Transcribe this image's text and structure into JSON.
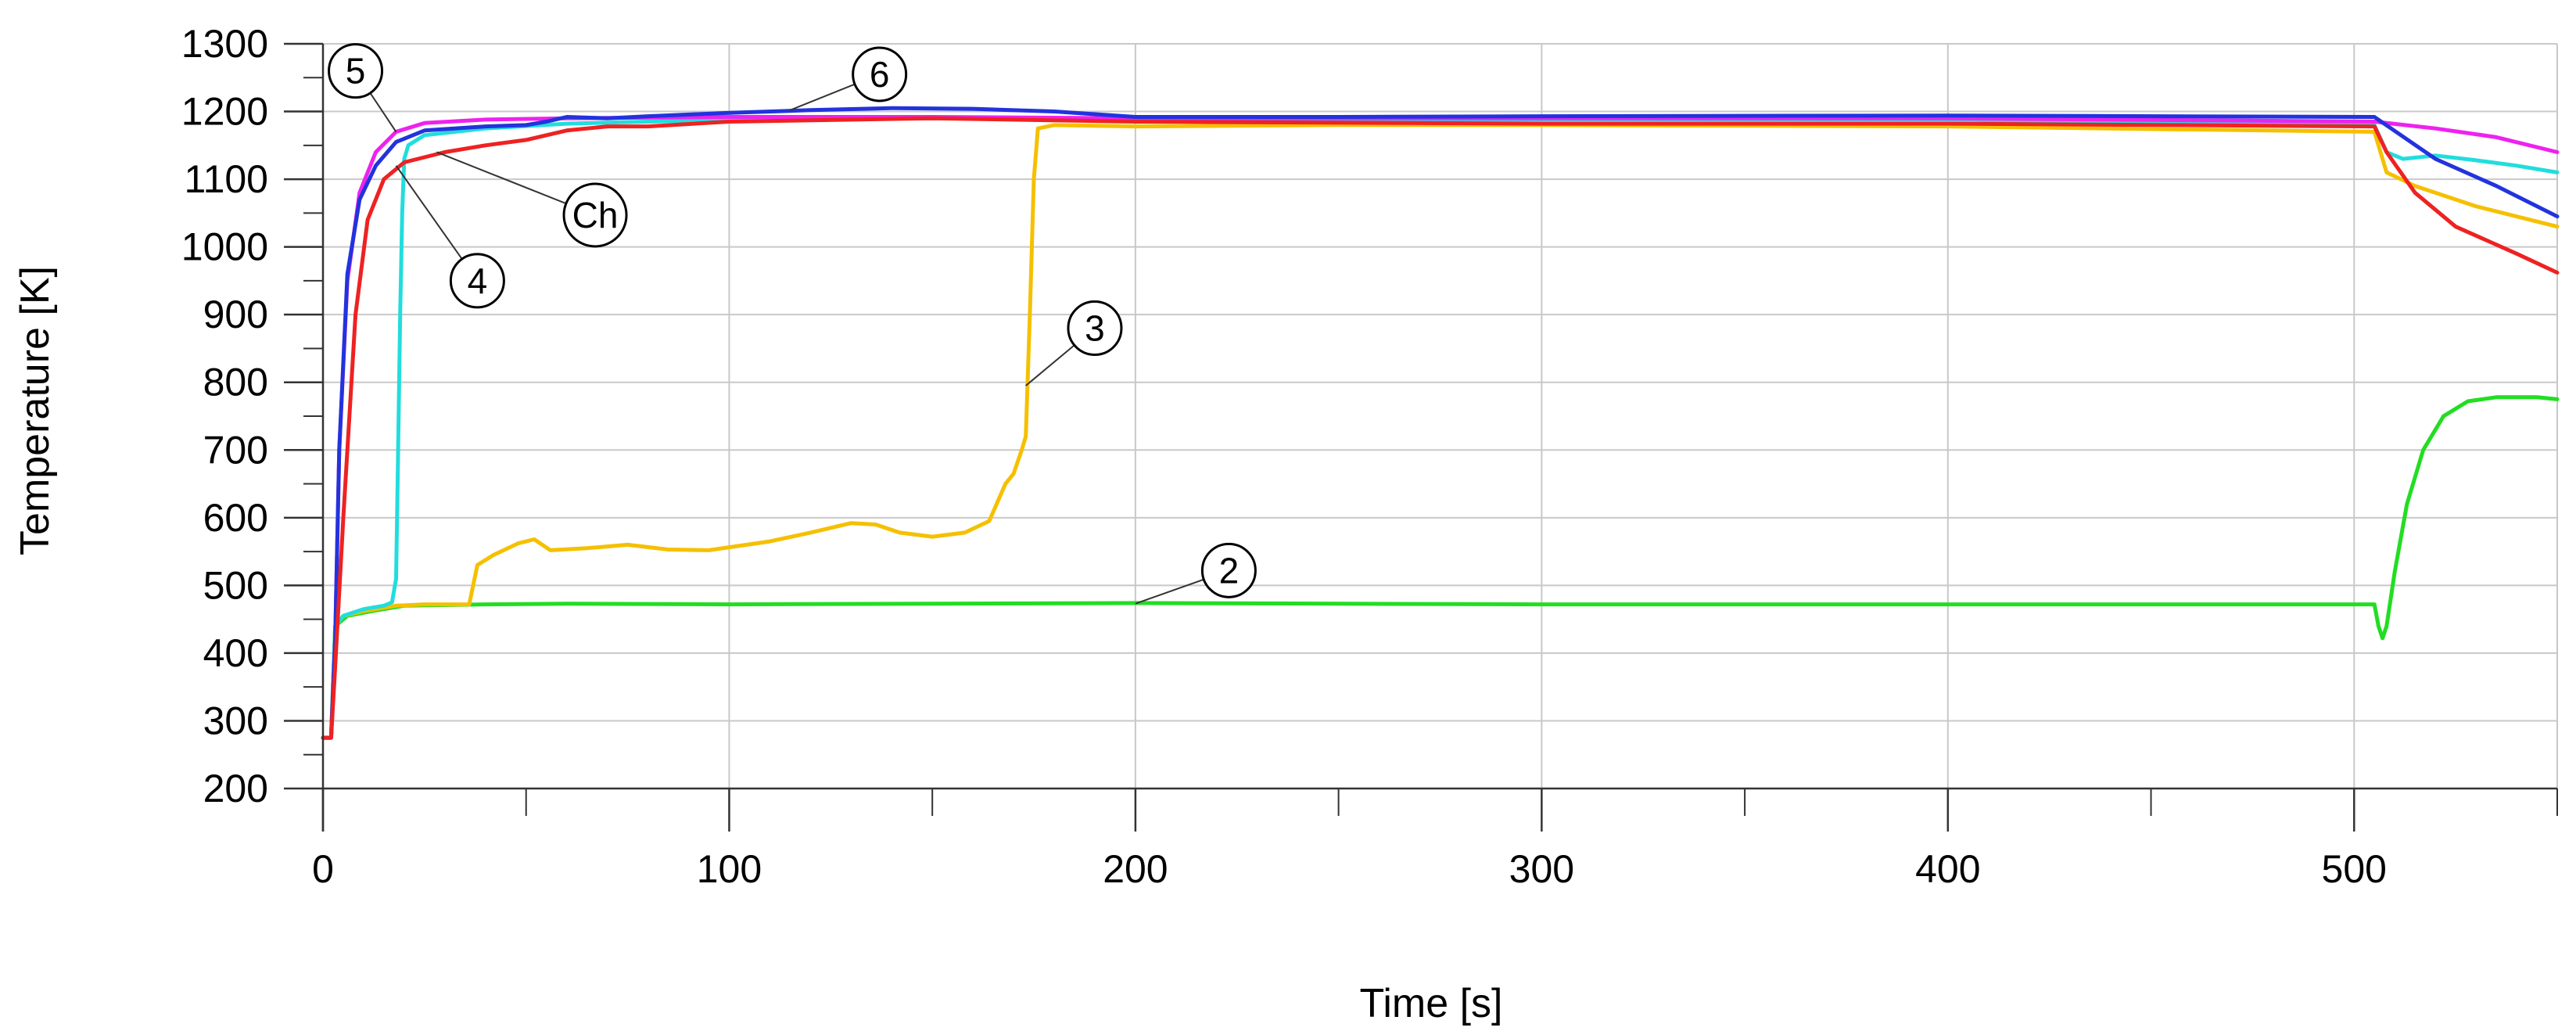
{
  "chart_data": {
    "type": "line",
    "xlabel": "Time [s]",
    "ylabel": "Temperature [K]",
    "xlim": [
      0,
      550
    ],
    "ylim": [
      200,
      1300
    ],
    "x_ticks": [
      0,
      100,
      200,
      300,
      400,
      500
    ],
    "y_ticks": [
      200,
      300,
      400,
      500,
      600,
      700,
      800,
      900,
      1000,
      1100,
      1200,
      1300
    ],
    "grid": true,
    "series": [
      {
        "name": "2",
        "color": "#22dd22",
        "points": [
          [
            0,
            275
          ],
          [
            2,
            275
          ],
          [
            3,
            440
          ],
          [
            6,
            455
          ],
          [
            12,
            462
          ],
          [
            20,
            470
          ],
          [
            40,
            472
          ],
          [
            60,
            473
          ],
          [
            100,
            472
          ],
          [
            150,
            473
          ],
          [
            200,
            474
          ],
          [
            300,
            472
          ],
          [
            400,
            472
          ],
          [
            480,
            472
          ],
          [
            505,
            472
          ],
          [
            506,
            440
          ],
          [
            507,
            422
          ],
          [
            508,
            440
          ],
          [
            510,
            520
          ],
          [
            513,
            620
          ],
          [
            517,
            700
          ],
          [
            522,
            750
          ],
          [
            528,
            772
          ],
          [
            535,
            778
          ],
          [
            545,
            778
          ],
          [
            550,
            775
          ]
        ]
      },
      {
        "name": "3",
        "color": "#f5c000",
        "points": [
          [
            0,
            275
          ],
          [
            2,
            275
          ],
          [
            3,
            440
          ],
          [
            5,
            455
          ],
          [
            10,
            462
          ],
          [
            18,
            470
          ],
          [
            25,
            472
          ],
          [
            30,
            472
          ],
          [
            36,
            472
          ],
          [
            38,
            530
          ],
          [
            42,
            545
          ],
          [
            48,
            562
          ],
          [
            52,
            568
          ],
          [
            56,
            552
          ],
          [
            65,
            555
          ],
          [
            75,
            560
          ],
          [
            85,
            553
          ],
          [
            95,
            552
          ],
          [
            110,
            565
          ],
          [
            120,
            578
          ],
          [
            130,
            592
          ],
          [
            136,
            590
          ],
          [
            142,
            578
          ],
          [
            150,
            572
          ],
          [
            158,
            578
          ],
          [
            164,
            595
          ],
          [
            168,
            650
          ],
          [
            170,
            665
          ],
          [
            172,
            700
          ],
          [
            173,
            720
          ],
          [
            174,
            900
          ],
          [
            175,
            1100
          ],
          [
            176,
            1175
          ],
          [
            180,
            1180
          ],
          [
            200,
            1178
          ],
          [
            250,
            1180
          ],
          [
            300,
            1180
          ],
          [
            400,
            1178
          ],
          [
            505,
            1170
          ],
          [
            508,
            1110
          ],
          [
            515,
            1090
          ],
          [
            530,
            1060
          ],
          [
            550,
            1030
          ]
        ]
      },
      {
        "name": "4",
        "color": "#22dddd",
        "points": [
          [
            0,
            275
          ],
          [
            2,
            275
          ],
          [
            3,
            440
          ],
          [
            5,
            455
          ],
          [
            10,
            465
          ],
          [
            15,
            470
          ],
          [
            17,
            475
          ],
          [
            18,
            510
          ],
          [
            18.5,
            700
          ],
          [
            19,
            900
          ],
          [
            19.5,
            1050
          ],
          [
            20,
            1130
          ],
          [
            21,
            1150
          ],
          [
            25,
            1165
          ],
          [
            40,
            1175
          ],
          [
            60,
            1182
          ],
          [
            100,
            1188
          ],
          [
            150,
            1190
          ],
          [
            200,
            1188
          ],
          [
            300,
            1188
          ],
          [
            400,
            1188
          ],
          [
            505,
            1180
          ],
          [
            508,
            1140
          ],
          [
            512,
            1130
          ],
          [
            520,
            1135
          ],
          [
            530,
            1128
          ],
          [
            540,
            1120
          ],
          [
            550,
            1110
          ]
        ]
      },
      {
        "name": "5",
        "color": "#ee22ee",
        "points": [
          [
            0,
            275
          ],
          [
            2,
            275
          ],
          [
            3,
            420
          ],
          [
            4,
            700
          ],
          [
            6,
            950
          ],
          [
            9,
            1080
          ],
          [
            13,
            1140
          ],
          [
            18,
            1170
          ],
          [
            25,
            1183
          ],
          [
            40,
            1188
          ],
          [
            60,
            1190
          ],
          [
            100,
            1192
          ],
          [
            150,
            1192
          ],
          [
            200,
            1190
          ],
          [
            300,
            1190
          ],
          [
            400,
            1190
          ],
          [
            505,
            1185
          ],
          [
            520,
            1175
          ],
          [
            535,
            1162
          ],
          [
            550,
            1140
          ]
        ]
      },
      {
        "name": "6",
        "color": "#2233dd",
        "points": [
          [
            0,
            275
          ],
          [
            2,
            275
          ],
          [
            3,
            420
          ],
          [
            4,
            700
          ],
          [
            6,
            960
          ],
          [
            9,
            1070
          ],
          [
            13,
            1120
          ],
          [
            18,
            1155
          ],
          [
            25,
            1172
          ],
          [
            40,
            1178
          ],
          [
            50,
            1180
          ],
          [
            55,
            1185
          ],
          [
            60,
            1192
          ],
          [
            70,
            1190
          ],
          [
            80,
            1193
          ],
          [
            100,
            1198
          ],
          [
            120,
            1202
          ],
          [
            140,
            1205
          ],
          [
            160,
            1204
          ],
          [
            180,
            1200
          ],
          [
            200,
            1192
          ],
          [
            250,
            1192
          ],
          [
            300,
            1193
          ],
          [
            400,
            1194
          ],
          [
            505,
            1192
          ],
          [
            520,
            1130
          ],
          [
            535,
            1090
          ],
          [
            550,
            1045
          ]
        ]
      },
      {
        "name": "Ch",
        "color": "#ee2222",
        "points": [
          [
            0,
            275
          ],
          [
            2,
            275
          ],
          [
            3,
            380
          ],
          [
            5,
            600
          ],
          [
            8,
            900
          ],
          [
            11,
            1040
          ],
          [
            15,
            1100
          ],
          [
            20,
            1125
          ],
          [
            30,
            1140
          ],
          [
            40,
            1150
          ],
          [
            50,
            1158
          ],
          [
            60,
            1172
          ],
          [
            70,
            1178
          ],
          [
            80,
            1178
          ],
          [
            100,
            1185
          ],
          [
            150,
            1190
          ],
          [
            200,
            1185
          ],
          [
            300,
            1182
          ],
          [
            400,
            1182
          ],
          [
            505,
            1178
          ],
          [
            508,
            1140
          ],
          [
            515,
            1080
          ],
          [
            525,
            1030
          ],
          [
            540,
            990
          ],
          [
            550,
            962
          ]
        ]
      }
    ],
    "annotations": [
      {
        "label": "2",
        "series": "2",
        "point": [
          200,
          473
        ],
        "marker": [
          223,
          522
        ]
      },
      {
        "label": "3",
        "series": "3",
        "point": [
          173,
          795
        ],
        "marker": [
          190,
          880
        ]
      },
      {
        "label": "4",
        "series": "4",
        "point": [
          18,
          1120
        ],
        "marker": [
          38,
          950
        ]
      },
      {
        "label": "5",
        "series": "5",
        "point": [
          18,
          1170
        ],
        "marker": [
          8,
          1260
        ]
      },
      {
        "label": "6",
        "series": "6",
        "point": [
          115,
          1202
        ],
        "marker": [
          137,
          1255
        ]
      },
      {
        "label": "Ch",
        "series": "Ch",
        "point": [
          28,
          1140
        ],
        "marker": [
          67,
          1047
        ]
      }
    ]
  }
}
